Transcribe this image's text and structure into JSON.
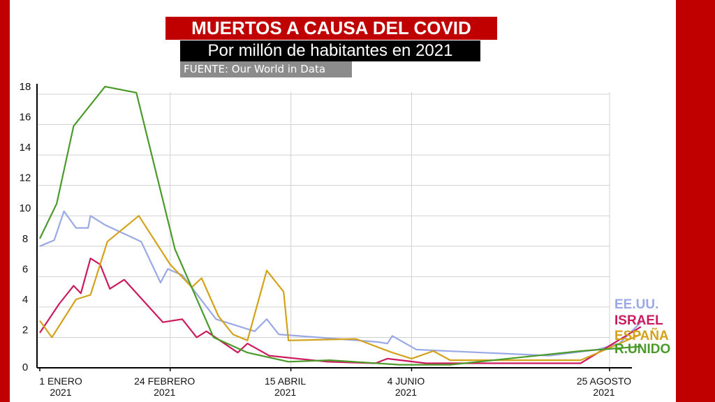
{
  "colors": {
    "frame": "#c00000",
    "grid": "#d0d0d0",
    "axis": "#000000"
  },
  "header": {
    "title": "MUERTOS A CAUSA DEL COVID",
    "subtitle": "Por millón de habitantes en 2021",
    "source": "FUENTE: Our World in Data"
  },
  "chart_data": {
    "type": "line",
    "title": "MUERTOS A CAUSA DEL COVID",
    "subtitle": "Por millón de habitantes en 2021",
    "xlabel": "",
    "ylabel": "",
    "ylim": [
      0,
      18
    ],
    "xlim": [
      "2021-01-01",
      "2021-09-10"
    ],
    "grid": true,
    "legend": "right",
    "y_ticks": [
      "0",
      "2",
      "4",
      "6",
      "8",
      "10",
      "12",
      "14",
      "16",
      "18"
    ],
    "x_ticks": [
      {
        "date": "2021-01-01",
        "line1": "1 ENERO",
        "line2": "2021"
      },
      {
        "date": "2021-02-24",
        "line1": "24 FEBRERO",
        "line2": "2021"
      },
      {
        "date": "2021-04-15",
        "line1": "15 ABRIL",
        "line2": "2021"
      },
      {
        "date": "2021-06-04",
        "line1": "4 JUNIO",
        "line2": "2021"
      },
      {
        "date": "2021-08-25",
        "line1": "25 AGOSTO",
        "line2": "2021"
      }
    ],
    "series": [
      {
        "name": "EE.UU.",
        "color": "#9aa9e6",
        "points": [
          [
            "2021-01-01",
            8.0
          ],
          [
            "2021-01-07",
            8.4
          ],
          [
            "2021-01-11",
            10.3
          ],
          [
            "2021-01-16",
            9.2
          ],
          [
            "2021-01-21",
            9.2
          ],
          [
            "2021-01-22",
            10.0
          ],
          [
            "2021-01-28",
            9.4
          ],
          [
            "2021-02-12",
            8.3
          ],
          [
            "2021-02-20",
            5.6
          ],
          [
            "2021-02-23",
            6.5
          ],
          [
            "2021-03-01",
            6.1
          ],
          [
            "2021-03-15",
            3.2
          ],
          [
            "2021-03-31",
            2.4
          ],
          [
            "2021-04-05",
            3.2
          ],
          [
            "2021-04-10",
            2.2
          ],
          [
            "2021-05-21",
            1.7
          ],
          [
            "2021-05-25",
            1.6
          ],
          [
            "2021-05-27",
            2.1
          ],
          [
            "2021-06-06",
            1.2
          ],
          [
            "2021-07-31",
            0.8
          ],
          [
            "2021-08-20",
            1.2
          ],
          [
            "2021-08-29",
            1.6
          ],
          [
            "2021-09-07",
            3.0
          ]
        ]
      },
      {
        "name": "ISRAEL",
        "color": "#cc1a5e",
        "points": [
          [
            "2021-01-01",
            2.3
          ],
          [
            "2021-01-09",
            4.2
          ],
          [
            "2021-01-15",
            5.4
          ],
          [
            "2021-01-18",
            4.9
          ],
          [
            "2021-01-22",
            7.2
          ],
          [
            "2021-01-26",
            6.8
          ],
          [
            "2021-01-30",
            5.2
          ],
          [
            "2021-02-05",
            5.8
          ],
          [
            "2021-02-21",
            3.0
          ],
          [
            "2021-02-29",
            3.2
          ],
          [
            "2021-03-07",
            2.0
          ],
          [
            "2021-03-11",
            2.4
          ],
          [
            "2021-03-24",
            1.0
          ],
          [
            "2021-03-28",
            1.6
          ],
          [
            "2021-04-06",
            0.8
          ],
          [
            "2021-04-30",
            0.4
          ],
          [
            "2021-05-20",
            0.3
          ],
          [
            "2021-05-25",
            0.6
          ],
          [
            "2021-06-10",
            0.3
          ],
          [
            "2021-08-13",
            0.3
          ],
          [
            "2021-09-07",
            2.7
          ]
        ]
      },
      {
        "name": "ESPAÑA",
        "color": "#d4a21a",
        "points": [
          [
            "2021-01-01",
            3.1
          ],
          [
            "2021-01-06",
            2.0
          ],
          [
            "2021-01-16",
            4.5
          ],
          [
            "2021-01-22",
            4.8
          ],
          [
            "2021-01-29",
            8.3
          ],
          [
            "2021-02-11",
            10.0
          ],
          [
            "2021-02-24",
            6.8
          ],
          [
            "2021-03-05",
            5.3
          ],
          [
            "2021-03-09",
            5.9
          ],
          [
            "2021-03-16",
            3.4
          ],
          [
            "2021-03-22",
            2.2
          ],
          [
            "2021-03-28",
            1.8
          ],
          [
            "2021-04-05",
            6.4
          ],
          [
            "2021-04-12",
            5.0
          ],
          [
            "2021-04-14",
            1.8
          ],
          [
            "2021-05-12",
            1.9
          ],
          [
            "2021-05-27",
            1.0
          ],
          [
            "2021-06-04",
            0.6
          ],
          [
            "2021-06-13",
            1.1
          ],
          [
            "2021-06-20",
            0.5
          ],
          [
            "2021-08-13",
            0.5
          ],
          [
            "2021-09-07",
            2.2
          ]
        ]
      },
      {
        "name": "R.UNIDO",
        "color": "#4a9a2a",
        "points": [
          [
            "2021-01-01",
            8.5
          ],
          [
            "2021-01-08",
            10.8
          ],
          [
            "2021-01-15",
            15.9
          ],
          [
            "2021-01-28",
            18.5
          ],
          [
            "2021-02-10",
            18.1
          ],
          [
            "2021-02-26",
            7.8
          ],
          [
            "2021-03-14",
            2.0
          ],
          [
            "2021-03-28",
            1.0
          ],
          [
            "2021-04-14",
            0.4
          ],
          [
            "2021-05-01",
            0.5
          ],
          [
            "2021-05-30",
            0.2
          ],
          [
            "2021-06-20",
            0.2
          ],
          [
            "2021-08-13",
            1.1
          ],
          [
            "2021-09-07",
            1.4
          ]
        ]
      }
    ]
  }
}
